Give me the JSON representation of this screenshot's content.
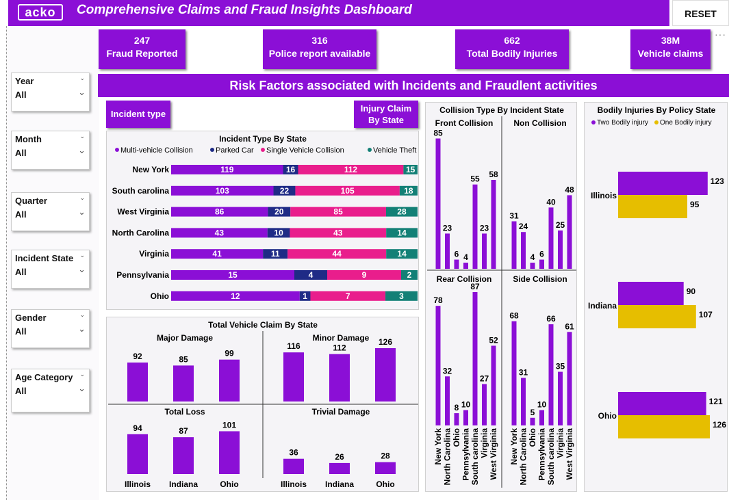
{
  "header": {
    "logo": "acko",
    "title": "Comprehensive Claims and Fraud Insights Dashboard",
    "reset_label": "RESET",
    "more": "···"
  },
  "colors": {
    "purple": "#8b0fd6",
    "navy": "#1f2b86",
    "pink": "#e91e8c",
    "teal": "#138076",
    "gold": "#e6be00"
  },
  "kpis": [
    {
      "value": "247",
      "label": "Fraud Reported"
    },
    {
      "value": "316",
      "label": "Police report available"
    },
    {
      "value": "662",
      "label": "Total Bodily Injuries"
    },
    {
      "value": "38M",
      "label": "Vehicle claims"
    }
  ],
  "filters": [
    {
      "label": "Year",
      "value": "All"
    },
    {
      "label": "Month",
      "value": "All"
    },
    {
      "label": "Quarter",
      "value": "All"
    },
    {
      "label": "Incident State",
      "value": "All"
    },
    {
      "label": "Gender",
      "value": "All"
    },
    {
      "label": "Age Category",
      "value": "All"
    }
  ],
  "banner": "Risk Factors associated with Incidents and Fraudlent activities",
  "page_buttons": {
    "incident_type": "Incident type",
    "injury_claim_line1": "Injury Claim",
    "injury_claim_line2": "By State"
  },
  "chart_data": [
    {
      "id": "incident_type_by_state",
      "type": "bar",
      "orientation": "horizontal-stacked",
      "title": "Incident Type By State",
      "categories": [
        "New York",
        "South carolina",
        "West Virginia",
        "North Carolina",
        "Virginia",
        "Pennsylvania",
        "Ohio"
      ],
      "series": [
        {
          "name": "Multi-vehicle Collision",
          "color": "#8b0fd6",
          "values": [
            119,
            103,
            86,
            43,
            41,
            15,
            12
          ]
        },
        {
          "name": "Parked Car",
          "color": "#1f2b86",
          "values": [
            16,
            22,
            20,
            10,
            11,
            4,
            1
          ]
        },
        {
          "name": "Single Vehicle Collision",
          "color": "#e91e8c",
          "values": [
            112,
            105,
            85,
            43,
            44,
            9,
            7
          ]
        },
        {
          "name": "Vehicle Theft",
          "color": "#138076",
          "values": [
            15,
            18,
            28,
            14,
            14,
            2,
            3
          ]
        }
      ],
      "legend": "top"
    },
    {
      "id": "total_vehicle_claim_by_state",
      "type": "bar",
      "title": "Total Vehicle Claim By State",
      "categories": [
        "Illinois",
        "Indiana",
        "Ohio"
      ],
      "panels": [
        {
          "name": "Major Damage",
          "values": [
            92,
            85,
            99
          ]
        },
        {
          "name": "Minor Damage",
          "values": [
            116,
            112,
            126
          ]
        },
        {
          "name": "Total Loss",
          "values": [
            94,
            87,
            101
          ]
        },
        {
          "name": "Trivial Damage",
          "values": [
            36,
            26,
            28
          ]
        }
      ]
    },
    {
      "id": "collision_type_by_incident_state",
      "type": "bar",
      "title": "Collision Type By Incident State",
      "categories": [
        "New York",
        "North Carolina",
        "Ohio",
        "Pennsylvania",
        "South carolina",
        "Virginia",
        "West Virginia"
      ],
      "panels": [
        {
          "name": "Front Collision",
          "values": [
            85,
            23,
            6,
            4,
            55,
            23,
            58
          ]
        },
        {
          "name": "Non Collision",
          "values": [
            31,
            24,
            4,
            6,
            40,
            25,
            48
          ]
        },
        {
          "name": "Rear Collision",
          "values": [
            78,
            32,
            8,
            10,
            87,
            27,
            52
          ]
        },
        {
          "name": "Side Collision",
          "values": [
            68,
            31,
            5,
            10,
            66,
            35,
            61
          ]
        }
      ]
    },
    {
      "id": "bodily_injuries_by_policy_state",
      "type": "bar",
      "orientation": "horizontal",
      "title": "Bodily Injuries By Policy State",
      "categories": [
        "Illinois",
        "Indiana",
        "Ohio"
      ],
      "series": [
        {
          "name": "Two Bodily injury",
          "color": "#8b0fd6",
          "values": [
            123,
            90,
            121
          ]
        },
        {
          "name": "One Bodily injury",
          "color": "#e6be00",
          "values": [
            95,
            107,
            126
          ]
        }
      ],
      "legend": "top"
    }
  ]
}
